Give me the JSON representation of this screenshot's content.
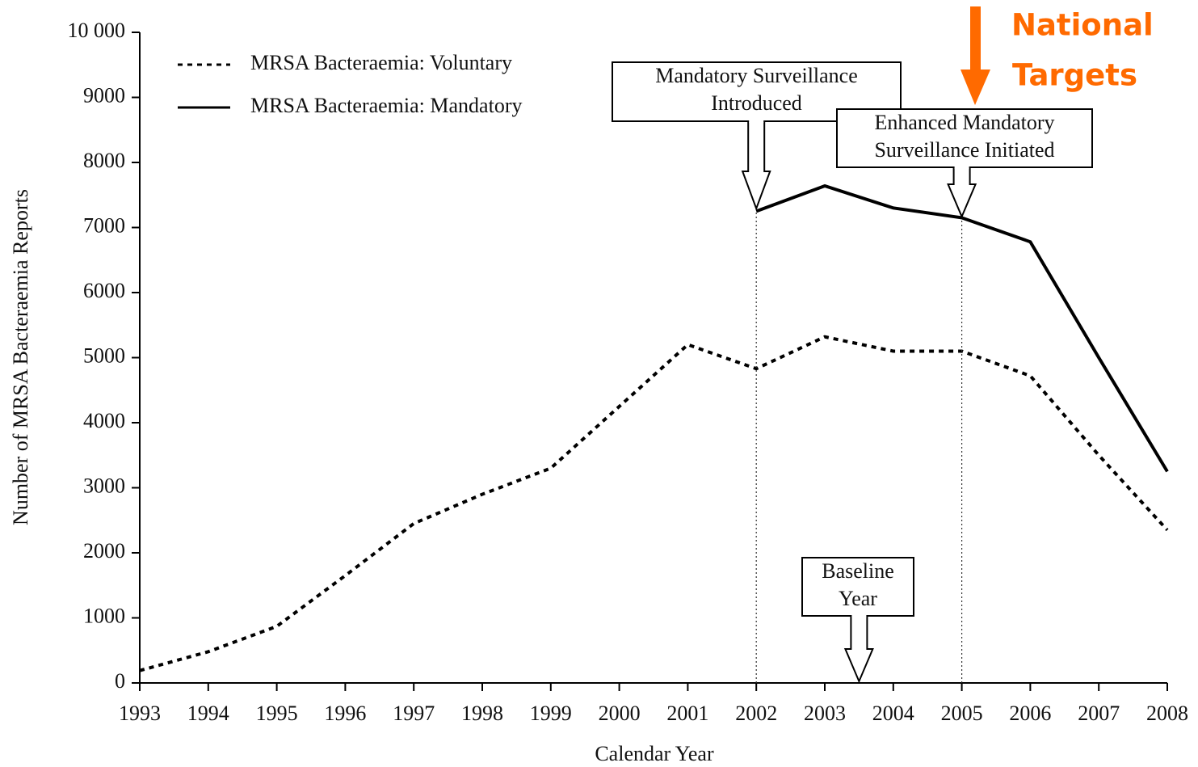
{
  "chart_data": {
    "type": "line",
    "xlabel": "Calendar Year",
    "ylabel": "Number of MRSA Bacteraemia Reports",
    "x": [
      1993,
      1994,
      1995,
      1996,
      1997,
      1998,
      1999,
      2000,
      2001,
      2002,
      2003,
      2004,
      2005,
      2006,
      2007,
      2008
    ],
    "series": [
      {
        "name": "MRSA Bacteraemia: Voluntary",
        "color": "#000000",
        "style": "dotted",
        "values": [
          190,
          480,
          870,
          1650,
          2450,
          2900,
          3300,
          4250,
          5200,
          4830,
          5320,
          5100,
          5100,
          4720,
          3500,
          2350
        ]
      },
      {
        "name": "MRSA Bacteraemia: Mandatory",
        "color": "#000000",
        "style": "solid",
        "values": [
          null,
          null,
          null,
          null,
          null,
          null,
          null,
          null,
          null,
          7250,
          7640,
          7300,
          7150,
          6780,
          5000,
          3250
        ]
      }
    ],
    "xlim": [
      1993,
      2008
    ],
    "xticks": [
      1993,
      1994,
      1995,
      1996,
      1997,
      1998,
      1999,
      2000,
      2001,
      2002,
      2003,
      2004,
      2005,
      2006,
      2007,
      2008
    ],
    "ylim": [
      0,
      10000
    ],
    "yticks": [
      0,
      1000,
      2000,
      3000,
      4000,
      5000,
      6000,
      7000,
      8000,
      9000,
      {
        "value": 10000,
        "label": "10 000"
      }
    ],
    "legend": "upper left",
    "annotations": [
      {
        "text": [
          "Mandatory Surveillance",
          "Introduced"
        ],
        "x": 2002
      },
      {
        "text": [
          "Enhanced Mandatory",
          "Surveillance Initiated"
        ],
        "x": 2005
      },
      {
        "text": [
          "Baseline",
          "Year"
        ],
        "x": 2003.5
      },
      {
        "text": [
          "National",
          "Targets"
        ],
        "color": "#ff6a00"
      }
    ]
  }
}
